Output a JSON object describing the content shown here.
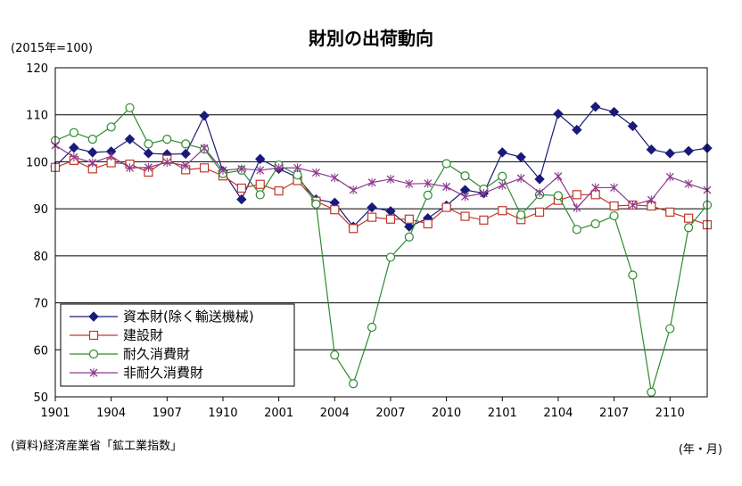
{
  "chart_data": {
    "type": "line",
    "title": "財別の出荷動向",
    "y_unit_label": "(2015年=100)",
    "source": "(資料)経済産業省「鉱工業指数」",
    "x_unit_label": "(年・月)",
    "ylim": [
      50,
      120
    ],
    "yticks": [
      50,
      60,
      70,
      80,
      90,
      100,
      110,
      120
    ],
    "grid": "horizontal",
    "legend_position": "bottom-left",
    "x_tick_labels": [
      "1901",
      "1904",
      "1907",
      "1910",
      "2001",
      "2004",
      "2007",
      "2010",
      "2101",
      "2104",
      "2107",
      "2110"
    ],
    "x": [
      "1901",
      "1902",
      "1903",
      "1904",
      "1905",
      "1906",
      "1907",
      "1908",
      "1909",
      "1910",
      "1911",
      "1912",
      "2001",
      "2002",
      "2003",
      "2004",
      "2005",
      "2006",
      "2007",
      "2008",
      "2009",
      "2010",
      "2011",
      "2012",
      "2101",
      "2102",
      "2103",
      "2104",
      "2105",
      "2106",
      "2107",
      "2108",
      "2109",
      "2110",
      "2111",
      "2112"
    ],
    "series": [
      {
        "name": "資本財(除く輸送機械)",
        "color": "#1a1a7a",
        "marker": "diamond",
        "values": [
          99.0,
          103.0,
          102.0,
          102.2,
          104.8,
          101.8,
          101.6,
          101.7,
          109.8,
          98.0,
          92.0,
          100.6,
          98.5,
          96.7,
          92.0,
          91.3,
          86.2,
          90.3,
          89.5,
          86.2,
          88.0,
          90.7,
          94.0,
          93.3,
          102.0,
          101.0,
          96.3,
          110.2,
          106.8,
          111.7,
          110.6,
          107.6,
          102.6,
          101.8,
          102.3,
          102.9
        ]
      },
      {
        "name": "建設財",
        "color": "#c0392b",
        "marker": "square",
        "values": [
          98.8,
          100.3,
          98.5,
          99.8,
          99.5,
          97.8,
          100.5,
          98.3,
          98.7,
          97.0,
          94.4,
          95.2,
          93.8,
          96.0,
          91.6,
          89.8,
          85.8,
          88.2,
          87.8,
          87.8,
          86.8,
          90.3,
          88.4,
          87.6,
          89.6,
          87.7,
          89.3,
          91.8,
          93.0,
          93.0,
          90.6,
          90.8,
          90.6,
          89.3,
          88.0,
          86.6
        ]
      },
      {
        "name": "耐久消費財",
        "color": "#2e8b2e",
        "marker": "circle",
        "values": [
          104.5,
          106.2,
          104.8,
          107.4,
          111.5,
          103.8,
          104.8,
          103.8,
          102.7,
          97.5,
          98.2,
          93.0,
          99.3,
          97.2,
          91.0,
          58.9,
          52.8,
          64.8,
          79.7,
          84.0,
          92.9,
          99.6,
          97.0,
          94.2,
          96.9,
          88.7,
          93.0,
          92.8,
          85.6,
          86.8,
          88.5,
          75.9,
          51.0,
          64.5,
          86.0,
          90.8
        ]
      },
      {
        "name": "非耐久消費財",
        "color": "#8e3a8e",
        "marker": "cross",
        "values": [
          103.5,
          101.0,
          99.8,
          101.2,
          98.7,
          98.8,
          99.9,
          99.2,
          102.9,
          98.2,
          98.5,
          98.2,
          98.7,
          98.7,
          97.7,
          96.6,
          94.0,
          95.6,
          96.3,
          95.3,
          95.4,
          94.7,
          92.6,
          93.3,
          95.0,
          96.5,
          93.4,
          96.9,
          90.2,
          94.5,
          94.5,
          90.8,
          91.9,
          96.8,
          95.3,
          94.0
        ]
      }
    ]
  }
}
